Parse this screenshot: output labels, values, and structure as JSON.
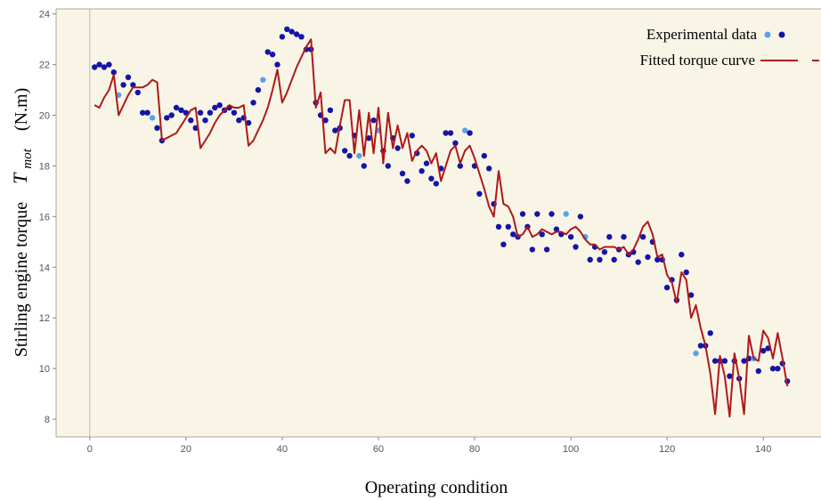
{
  "chart_data": {
    "type": "scatter",
    "xlabel": "Operating condition",
    "ylabel_prefix": "Stirling engine torque",
    "ylabel_symbol": "T",
    "ylabel_subscript": "mot",
    "ylabel_unit": "(N.m)",
    "xlim": [
      -7,
      152
    ],
    "ylim": [
      7.3,
      24.2
    ],
    "xticks": [
      0,
      20,
      40,
      60,
      80,
      100,
      120,
      140
    ],
    "yticks": [
      8,
      10,
      12,
      14,
      16,
      18,
      20,
      22,
      24
    ],
    "grid": false,
    "legend_position": "top-right",
    "colors": {
      "plot_background": "#f8f5e6",
      "frame": "#a8a8a0",
      "zero_line": "#b8b8b8",
      "dot_dark": "#1414a8",
      "dot_light": "#5aa0e6",
      "fit_line": "#b01818"
    },
    "series": [
      {
        "name": "Experimental data",
        "kind": "scatter",
        "points": [
          [
            1,
            21.9
          ],
          [
            2,
            22.0
          ],
          [
            3,
            21.9
          ],
          [
            4,
            22.0
          ],
          [
            5,
            21.7
          ],
          [
            6,
            20.8
          ],
          [
            7,
            21.2
          ],
          [
            8,
            21.5
          ],
          [
            9,
            21.2
          ],
          [
            10,
            20.9
          ],
          [
            11,
            20.1
          ],
          [
            12,
            20.1
          ],
          [
            13,
            19.9
          ],
          [
            14,
            19.5
          ],
          [
            15,
            19.0
          ],
          [
            16,
            19.9
          ],
          [
            17,
            20.0
          ],
          [
            18,
            20.3
          ],
          [
            19,
            20.2
          ],
          [
            20,
            20.1
          ],
          [
            21,
            19.8
          ],
          [
            22,
            19.5
          ],
          [
            23,
            20.1
          ],
          [
            24,
            19.8
          ],
          [
            25,
            20.1
          ],
          [
            26,
            20.3
          ],
          [
            27,
            20.4
          ],
          [
            28,
            20.2
          ],
          [
            29,
            20.3
          ],
          [
            30,
            20.1
          ],
          [
            31,
            19.8
          ],
          [
            32,
            19.9
          ],
          [
            33,
            19.7
          ],
          [
            34,
            20.5
          ],
          [
            35,
            21.0
          ],
          [
            36,
            21.4
          ],
          [
            37,
            22.5
          ],
          [
            38,
            22.4
          ],
          [
            39,
            22.0
          ],
          [
            40,
            23.1
          ],
          [
            41,
            23.4
          ],
          [
            42,
            23.3
          ],
          [
            43,
            23.2
          ],
          [
            44,
            23.1
          ],
          [
            45,
            22.6
          ],
          [
            46,
            22.6
          ],
          [
            47,
            20.5
          ],
          [
            48,
            20.0
          ],
          [
            49,
            19.8
          ],
          [
            50,
            20.2
          ],
          [
            51,
            19.4
          ],
          [
            52,
            19.5
          ],
          [
            53,
            18.6
          ],
          [
            54,
            18.4
          ],
          [
            55,
            19.2
          ],
          [
            56,
            18.4
          ],
          [
            57,
            18.0
          ],
          [
            58,
            19.1
          ],
          [
            59,
            19.8
          ],
          [
            60,
            19.4
          ],
          [
            61,
            18.6
          ],
          [
            62,
            18.0
          ],
          [
            63,
            19.1
          ],
          [
            64,
            18.7
          ],
          [
            65,
            17.7
          ],
          [
            66,
            17.4
          ],
          [
            67,
            19.2
          ],
          [
            68,
            18.5
          ],
          [
            69,
            17.8
          ],
          [
            70,
            18.1
          ],
          [
            71,
            17.5
          ],
          [
            72,
            17.3
          ],
          [
            73,
            17.9
          ],
          [
            74,
            19.3
          ],
          [
            75,
            19.3
          ],
          [
            76,
            18.9
          ],
          [
            77,
            18.0
          ],
          [
            78,
            19.4
          ],
          [
            79,
            19.3
          ],
          [
            80,
            18.0
          ],
          [
            81,
            16.9
          ],
          [
            82,
            18.4
          ],
          [
            83,
            17.9
          ],
          [
            84,
            16.5
          ],
          [
            85,
            15.6
          ],
          [
            86,
            14.9
          ],
          [
            87,
            15.6
          ],
          [
            88,
            15.3
          ],
          [
            89,
            15.2
          ],
          [
            90,
            16.1
          ],
          [
            91,
            15.6
          ],
          [
            92,
            14.7
          ],
          [
            93,
            16.1
          ],
          [
            94,
            15.3
          ],
          [
            95,
            14.7
          ],
          [
            96,
            16.1
          ],
          [
            97,
            15.5
          ],
          [
            98,
            15.3
          ],
          [
            99,
            16.1
          ],
          [
            100,
            15.2
          ],
          [
            101,
            14.8
          ],
          [
            102,
            16.0
          ],
          [
            103,
            15.2
          ],
          [
            104,
            14.3
          ],
          [
            105,
            14.8
          ],
          [
            106,
            14.3
          ],
          [
            107,
            14.6
          ],
          [
            108,
            15.2
          ],
          [
            109,
            14.3
          ],
          [
            110,
            14.7
          ],
          [
            111,
            15.2
          ],
          [
            112,
            14.5
          ],
          [
            113,
            14.6
          ],
          [
            114,
            14.2
          ],
          [
            115,
            15.2
          ],
          [
            116,
            14.4
          ],
          [
            117,
            15.0
          ],
          [
            118,
            14.3
          ],
          [
            119,
            14.3
          ],
          [
            120,
            13.2
          ],
          [
            121,
            13.5
          ],
          [
            122,
            12.7
          ],
          [
            123,
            14.5
          ],
          [
            124,
            13.8
          ],
          [
            125,
            12.9
          ],
          [
            126,
            10.6
          ],
          [
            127,
            10.9
          ],
          [
            128,
            10.9
          ],
          [
            129,
            11.4
          ],
          [
            130,
            10.3
          ],
          [
            131,
            10.3
          ],
          [
            132,
            10.3
          ],
          [
            133,
            9.7
          ],
          [
            134,
            10.3
          ],
          [
            135,
            9.6
          ],
          [
            136,
            10.3
          ],
          [
            137,
            10.4
          ],
          [
            138,
            10.4
          ],
          [
            139,
            9.9
          ],
          [
            140,
            10.7
          ],
          [
            141,
            10.8
          ],
          [
            142,
            10.0
          ],
          [
            143,
            10.0
          ],
          [
            144,
            10.2
          ],
          [
            145,
            9.5
          ]
        ],
        "light_indices": [
          5,
          12,
          35,
          55,
          59,
          77,
          98,
          102,
          125,
          137
        ]
      },
      {
        "name": "Fitted torque curve",
        "kind": "line",
        "points": [
          [
            1,
            20.4
          ],
          [
            2,
            20.3
          ],
          [
            3,
            20.7
          ],
          [
            4,
            21.0
          ],
          [
            5,
            21.6
          ],
          [
            6,
            20.0
          ],
          [
            7,
            20.4
          ],
          [
            8,
            20.8
          ],
          [
            9,
            21.1
          ],
          [
            10,
            21.1
          ],
          [
            11,
            21.1
          ],
          [
            12,
            21.2
          ],
          [
            13,
            21.4
          ],
          [
            14,
            21.3
          ],
          [
            15,
            19.0
          ],
          [
            16,
            19.1
          ],
          [
            17,
            19.2
          ],
          [
            18,
            19.3
          ],
          [
            19,
            19.6
          ],
          [
            20,
            19.9
          ],
          [
            21,
            20.2
          ],
          [
            22,
            20.3
          ],
          [
            23,
            18.7
          ],
          [
            24,
            19.0
          ],
          [
            25,
            19.3
          ],
          [
            26,
            19.7
          ],
          [
            27,
            20.0
          ],
          [
            28,
            20.2
          ],
          [
            29,
            20.4
          ],
          [
            30,
            20.3
          ],
          [
            31,
            20.3
          ],
          [
            32,
            20.4
          ],
          [
            33,
            18.8
          ],
          [
            34,
            19.0
          ],
          [
            35,
            19.4
          ],
          [
            36,
            19.8
          ],
          [
            37,
            20.3
          ],
          [
            38,
            21.0
          ],
          [
            39,
            21.8
          ],
          [
            40,
            20.5
          ],
          [
            41,
            20.9
          ],
          [
            42,
            21.4
          ],
          [
            43,
            21.9
          ],
          [
            44,
            22.3
          ],
          [
            45,
            22.7
          ],
          [
            46,
            23.0
          ],
          [
            47,
            20.3
          ],
          [
            48,
            20.9
          ],
          [
            49,
            18.5
          ],
          [
            50,
            18.7
          ],
          [
            51,
            18.5
          ],
          [
            52,
            19.6
          ],
          [
            53,
            20.6
          ],
          [
            54,
            20.6
          ],
          [
            55,
            18.5
          ],
          [
            56,
            20.2
          ],
          [
            57,
            18.4
          ],
          [
            58,
            20.1
          ],
          [
            59,
            18.5
          ],
          [
            60,
            20.3
          ],
          [
            61,
            18.1
          ],
          [
            62,
            20.1
          ],
          [
            63,
            18.7
          ],
          [
            64,
            19.6
          ],
          [
            65,
            18.7
          ],
          [
            66,
            19.3
          ],
          [
            67,
            18.2
          ],
          [
            68,
            18.6
          ],
          [
            69,
            18.8
          ],
          [
            70,
            18.6
          ],
          [
            71,
            18.1
          ],
          [
            72,
            18.5
          ],
          [
            73,
            17.4
          ],
          [
            74,
            18.0
          ],
          [
            75,
            18.6
          ],
          [
            76,
            18.8
          ],
          [
            77,
            18.1
          ],
          [
            78,
            18.6
          ],
          [
            79,
            18.8
          ],
          [
            80,
            18.3
          ],
          [
            81,
            17.7
          ],
          [
            82,
            17.1
          ],
          [
            83,
            16.4
          ],
          [
            84,
            16.0
          ],
          [
            85,
            17.8
          ],
          [
            86,
            16.5
          ],
          [
            87,
            16.4
          ],
          [
            88,
            16.0
          ],
          [
            89,
            15.2
          ],
          [
            90,
            15.3
          ],
          [
            91,
            15.6
          ],
          [
            92,
            15.2
          ],
          [
            93,
            15.3
          ],
          [
            94,
            15.5
          ],
          [
            95,
            15.4
          ],
          [
            96,
            15.3
          ],
          [
            97,
            15.4
          ],
          [
            98,
            15.4
          ],
          [
            99,
            15.3
          ],
          [
            100,
            15.5
          ],
          [
            101,
            15.6
          ],
          [
            102,
            15.4
          ],
          [
            103,
            15.1
          ],
          [
            104,
            14.9
          ],
          [
            105,
            14.9
          ],
          [
            106,
            14.7
          ],
          [
            107,
            14.8
          ],
          [
            108,
            14.8
          ],
          [
            109,
            14.8
          ],
          [
            110,
            14.7
          ],
          [
            111,
            14.8
          ],
          [
            112,
            14.5
          ],
          [
            113,
            14.7
          ],
          [
            114,
            15.1
          ],
          [
            115,
            15.6
          ],
          [
            116,
            15.8
          ],
          [
            117,
            15.3
          ],
          [
            118,
            14.4
          ],
          [
            119,
            14.5
          ],
          [
            120,
            13.7
          ],
          [
            121,
            13.4
          ],
          [
            122,
            12.6
          ],
          [
            123,
            13.8
          ],
          [
            124,
            13.5
          ],
          [
            125,
            12.0
          ],
          [
            126,
            12.5
          ],
          [
            127,
            11.6
          ],
          [
            128,
            10.9
          ],
          [
            129,
            9.8
          ],
          [
            130,
            8.2
          ],
          [
            131,
            10.5
          ],
          [
            132,
            9.7
          ],
          [
            133,
            8.1
          ],
          [
            134,
            10.6
          ],
          [
            135,
            9.6
          ],
          [
            136,
            8.2
          ],
          [
            137,
            11.3
          ],
          [
            138,
            10.4
          ],
          [
            139,
            10.3
          ],
          [
            140,
            11.5
          ],
          [
            141,
            11.2
          ],
          [
            142,
            10.4
          ],
          [
            143,
            11.4
          ],
          [
            144,
            10.4
          ],
          [
            145,
            9.3
          ]
        ]
      }
    ]
  }
}
